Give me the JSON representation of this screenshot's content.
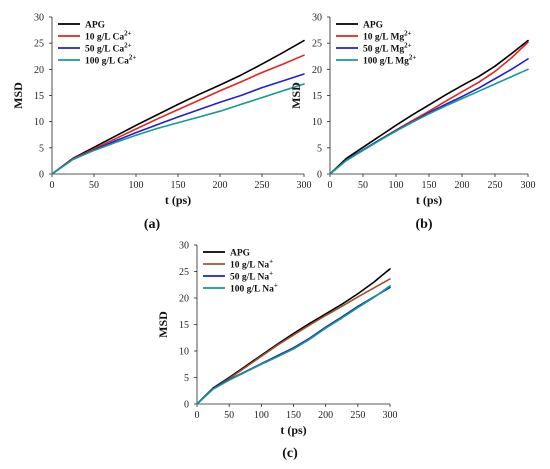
{
  "chart_data": [
    {
      "type": "line",
      "panel_label": "(a)",
      "xlabel": "t (ps)",
      "ylabel": "MSD",
      "xlim": [
        0,
        300
      ],
      "ylim": [
        0,
        30
      ],
      "xticks": [
        0,
        50,
        100,
        150,
        200,
        250,
        300
      ],
      "yticks": [
        0,
        5,
        10,
        15,
        20,
        25,
        30
      ],
      "legend_position": "top-left",
      "x": [
        0,
        25,
        50,
        75,
        100,
        125,
        150,
        175,
        200,
        225,
        250,
        275,
        300
      ],
      "series": [
        {
          "name": "APG",
          "ion": "Ca",
          "charge": "2+",
          "conc": "",
          "color": "#000000",
          "values": [
            0,
            3.0,
            5.1,
            7.2,
            9.3,
            11.3,
            13.3,
            15.2,
            17.0,
            18.9,
            21.0,
            23.2,
            25.5
          ]
        },
        {
          "name": "10 g/L Ca",
          "ion": "Ca",
          "charge": "2+",
          "conc": "10 g/L",
          "color": "#e8231f",
          "values": [
            0,
            2.9,
            4.8,
            6.7,
            8.6,
            10.5,
            12.3,
            14.1,
            15.9,
            17.6,
            19.4,
            21.0,
            22.7
          ]
        },
        {
          "name": "50 g/L Ca",
          "ion": "Ca",
          "charge": "2+",
          "conc": "50 g/L",
          "color": "#1f1fd6",
          "values": [
            0,
            2.8,
            4.6,
            6.3,
            7.9,
            9.4,
            10.9,
            12.3,
            13.7,
            15.0,
            16.5,
            17.8,
            19.1
          ]
        },
        {
          "name": "100 g/L Ca",
          "ion": "Ca",
          "charge": "2+",
          "conc": "100 g/L",
          "color": "#139b8c",
          "values": [
            0,
            2.8,
            4.5,
            6.0,
            7.4,
            8.7,
            9.8,
            10.9,
            12.0,
            13.3,
            14.6,
            15.9,
            17.2
          ]
        }
      ]
    },
    {
      "type": "line",
      "panel_label": "(b)",
      "xlabel": "t (ps)",
      "ylabel": "MSD",
      "xlim": [
        0,
        300
      ],
      "ylim": [
        0,
        30
      ],
      "xticks": [
        0,
        50,
        100,
        150,
        200,
        250,
        300
      ],
      "yticks": [
        0,
        5,
        10,
        15,
        20,
        25,
        30
      ],
      "legend_position": "top-left",
      "x": [
        0,
        25,
        50,
        75,
        100,
        125,
        150,
        175,
        200,
        225,
        250,
        275,
        300
      ],
      "series": [
        {
          "name": "APG",
          "ion": "Mg",
          "charge": "2+",
          "conc": "",
          "color": "#000000",
          "values": [
            0,
            3.0,
            5.1,
            7.2,
            9.3,
            11.3,
            13.2,
            15.1,
            16.9,
            18.6,
            20.6,
            23.0,
            25.5
          ]
        },
        {
          "name": "10 g/L Mg",
          "ion": "Mg",
          "charge": "2+",
          "conc": "10 g/L",
          "color": "#e8231f",
          "values": [
            0,
            2.7,
            4.6,
            6.5,
            8.4,
            10.2,
            12.0,
            13.9,
            15.7,
            17.5,
            19.6,
            22.2,
            25.2
          ]
        },
        {
          "name": "50 g/L Mg",
          "ion": "Mg",
          "charge": "2+",
          "conc": "50 g/L",
          "color": "#1f1fd6",
          "values": [
            0,
            2.7,
            4.6,
            6.5,
            8.3,
            10.0,
            11.7,
            13.3,
            14.8,
            16.4,
            18.2,
            20.0,
            22.0
          ]
        },
        {
          "name": "100 g/L Mg",
          "ion": "Mg",
          "charge": "2+",
          "conc": "100 g/L",
          "color": "#139b8c",
          "values": [
            0,
            2.6,
            4.5,
            6.4,
            8.2,
            9.9,
            11.5,
            13.0,
            14.4,
            15.8,
            17.2,
            18.6,
            20.0
          ]
        }
      ]
    },
    {
      "type": "line",
      "panel_label": "(c)",
      "xlabel": "t (ps)",
      "ylabel": "MSD",
      "xlim": [
        0,
        300
      ],
      "ylim": [
        0,
        30
      ],
      "xticks": [
        0,
        50,
        100,
        150,
        200,
        250,
        300
      ],
      "yticks": [
        0,
        5,
        10,
        15,
        20,
        25,
        30
      ],
      "legend_position": "top-left",
      "x": [
        0,
        25,
        50,
        75,
        100,
        125,
        150,
        175,
        200,
        225,
        250,
        275,
        300
      ],
      "series": [
        {
          "name": "APG",
          "ion": "Na",
          "charge": "+",
          "conc": "",
          "color": "#000000",
          "values": [
            0,
            3.0,
            5.0,
            7.1,
            9.2,
            11.3,
            13.3,
            15.2,
            17.0,
            18.8,
            20.8,
            23.0,
            25.5
          ]
        },
        {
          "name": "10 g/L Na",
          "ion": "Na",
          "charge": "+",
          "conc": "10 g/L",
          "color": "#a0522d",
          "values": [
            0,
            2.9,
            4.8,
            6.9,
            9.0,
            11.1,
            13.0,
            14.9,
            16.7,
            18.4,
            20.2,
            21.9,
            23.6
          ]
        },
        {
          "name": "50 g/L Na",
          "ion": "Na",
          "charge": "+",
          "conc": "50 g/L",
          "color": "#1f1fd6",
          "values": [
            0,
            2.9,
            4.6,
            6.1,
            7.6,
            9.1,
            10.6,
            12.4,
            14.5,
            16.4,
            18.4,
            20.2,
            22.0
          ]
        },
        {
          "name": "100 g/L Na",
          "ion": "Na",
          "charge": "+",
          "conc": "100 g/L",
          "color": "#139b8c",
          "values": [
            0,
            2.8,
            4.5,
            6.0,
            7.5,
            8.9,
            10.4,
            12.2,
            14.3,
            16.2,
            18.2,
            20.1,
            22.3
          ]
        }
      ]
    }
  ]
}
